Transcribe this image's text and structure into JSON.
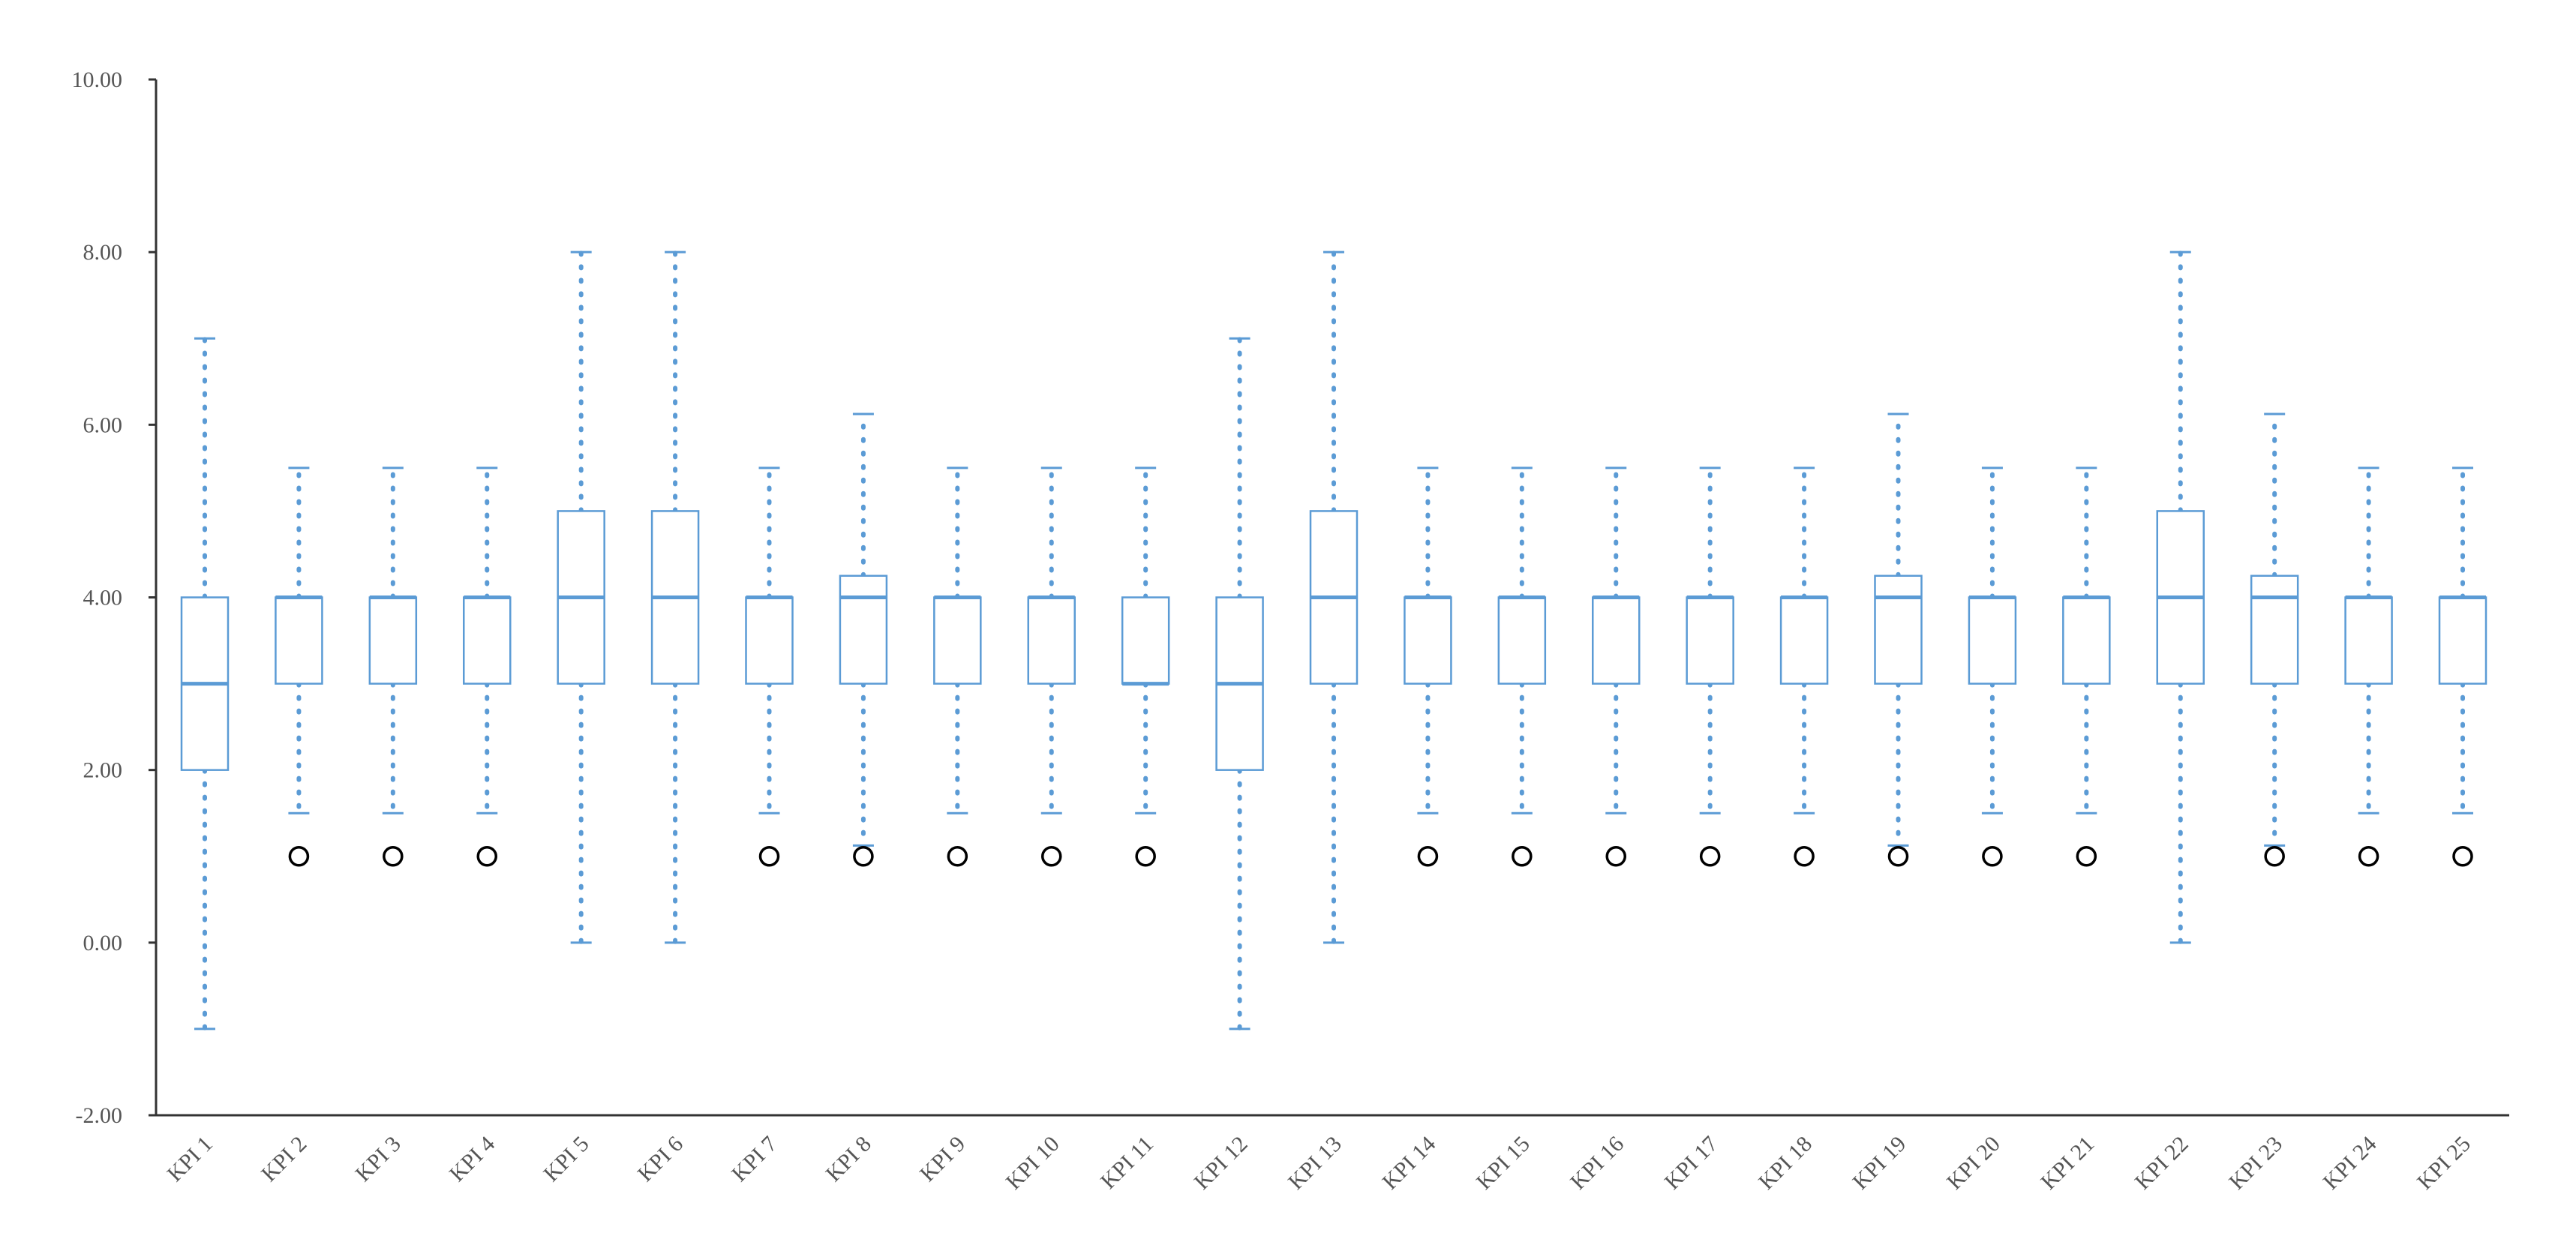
{
  "chart_data": {
    "type": "boxplot",
    "title": "",
    "xlabel": "",
    "ylabel": "",
    "ylim": [
      -2,
      10
    ],
    "yticks": [
      "-2.00",
      "0.00",
      "2.00",
      "4.00",
      "6.00",
      "8.00",
      "10.00"
    ],
    "ytick_values": [
      -2,
      0,
      2,
      4,
      6,
      8,
      10
    ],
    "grid": false,
    "legend": "none",
    "colors": {
      "box": "#5b9bd5",
      "whisker": "#5b9bd5",
      "outlier": "#000000",
      "axis": "#333333",
      "tick_text": "#555555"
    },
    "categories": [
      "KPI 1",
      "KPI 2",
      "KPI 3",
      "KPI 4",
      "KPI 5",
      "KPI 6",
      "KPI 7",
      "KPI 8",
      "KPI 9",
      "KPI 10",
      "KPI 11",
      "KPI 12",
      "KPI 13",
      "KPI 14",
      "KPI 15",
      "KPI 16",
      "KPI 17",
      "KPI 18",
      "KPI 19",
      "KPI 20",
      "KPI 21",
      "KPI 22",
      "KPI 23",
      "KPI 24",
      "KPI 25"
    ],
    "boxes": [
      {
        "whisker_low": -1,
        "q1": 2,
        "median": 3,
        "q3": 4,
        "whisker_high": 7,
        "outliers": []
      },
      {
        "whisker_low": 1.5,
        "q1": 3,
        "median": 4,
        "q3": 4,
        "whisker_high": 5.5,
        "outliers": [
          1
        ]
      },
      {
        "whisker_low": 1.5,
        "q1": 3,
        "median": 4,
        "q3": 4,
        "whisker_high": 5.5,
        "outliers": [
          1
        ]
      },
      {
        "whisker_low": 1.5,
        "q1": 3,
        "median": 4,
        "q3": 4,
        "whisker_high": 5.5,
        "outliers": [
          1
        ]
      },
      {
        "whisker_low": 0,
        "q1": 3,
        "median": 4,
        "q3": 5,
        "whisker_high": 8,
        "outliers": []
      },
      {
        "whisker_low": 0,
        "q1": 3,
        "median": 4,
        "q3": 5,
        "whisker_high": 8,
        "outliers": []
      },
      {
        "whisker_low": 1.5,
        "q1": 3,
        "median": 4,
        "q3": 4,
        "whisker_high": 5.5,
        "outliers": [
          1
        ]
      },
      {
        "whisker_low": 1.125,
        "q1": 3,
        "median": 4,
        "q3": 4.25,
        "whisker_high": 6.125,
        "outliers": [
          1
        ]
      },
      {
        "whisker_low": 1.5,
        "q1": 3,
        "median": 4,
        "q3": 4,
        "whisker_high": 5.5,
        "outliers": [
          1
        ]
      },
      {
        "whisker_low": 1.5,
        "q1": 3,
        "median": 4,
        "q3": 4,
        "whisker_high": 5.5,
        "outliers": [
          1
        ]
      },
      {
        "whisker_low": 1.5,
        "q1": 3,
        "median": 3,
        "q3": 4,
        "whisker_high": 5.5,
        "outliers": [
          1
        ]
      },
      {
        "whisker_low": -1,
        "q1": 2,
        "median": 3,
        "q3": 4,
        "whisker_high": 7,
        "outliers": []
      },
      {
        "whisker_low": 0,
        "q1": 3,
        "median": 4,
        "q3": 5,
        "whisker_high": 8,
        "outliers": []
      },
      {
        "whisker_low": 1.5,
        "q1": 3,
        "median": 4,
        "q3": 4,
        "whisker_high": 5.5,
        "outliers": [
          1
        ]
      },
      {
        "whisker_low": 1.5,
        "q1": 3,
        "median": 4,
        "q3": 4,
        "whisker_high": 5.5,
        "outliers": [
          1
        ]
      },
      {
        "whisker_low": 1.5,
        "q1": 3,
        "median": 4,
        "q3": 4,
        "whisker_high": 5.5,
        "outliers": [
          1
        ]
      },
      {
        "whisker_low": 1.5,
        "q1": 3,
        "median": 4,
        "q3": 4,
        "whisker_high": 5.5,
        "outliers": [
          1
        ]
      },
      {
        "whisker_low": 1.5,
        "q1": 3,
        "median": 4,
        "q3": 4,
        "whisker_high": 5.5,
        "outliers": [
          1
        ]
      },
      {
        "whisker_low": 1.125,
        "q1": 3,
        "median": 4,
        "q3": 4.25,
        "whisker_high": 6.125,
        "outliers": [
          1
        ]
      },
      {
        "whisker_low": 1.5,
        "q1": 3,
        "median": 4,
        "q3": 4,
        "whisker_high": 5.5,
        "outliers": [
          1
        ]
      },
      {
        "whisker_low": 1.5,
        "q1": 3,
        "median": 4,
        "q3": 4,
        "whisker_high": 5.5,
        "outliers": [
          1
        ]
      },
      {
        "whisker_low": 0,
        "q1": 3,
        "median": 4,
        "q3": 5,
        "whisker_high": 8,
        "outliers": []
      },
      {
        "whisker_low": 1.125,
        "q1": 3,
        "median": 4,
        "q3": 4.25,
        "whisker_high": 6.125,
        "outliers": [
          1
        ]
      },
      {
        "whisker_low": 1.5,
        "q1": 3,
        "median": 4,
        "q3": 4,
        "whisker_high": 5.5,
        "outliers": [
          1
        ]
      },
      {
        "whisker_low": 1.5,
        "q1": 3,
        "median": 4,
        "q3": 4,
        "whisker_high": 5.5,
        "outliers": [
          1
        ]
      }
    ]
  }
}
